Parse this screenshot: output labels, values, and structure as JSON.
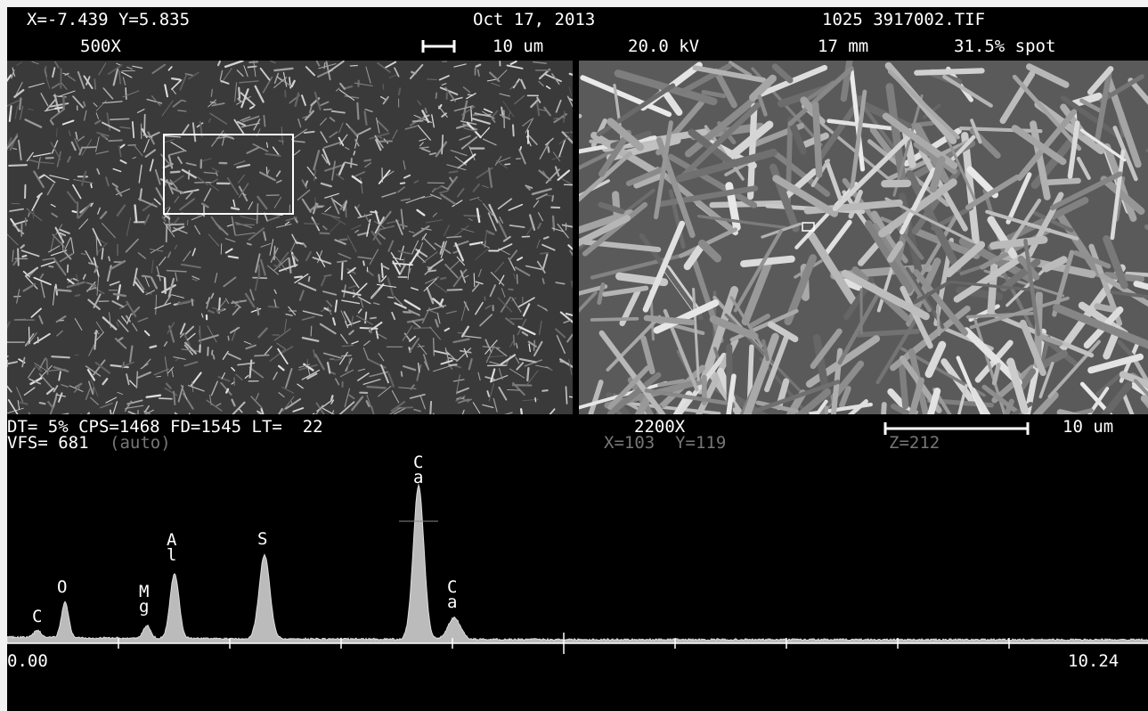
{
  "header": {
    "coords": "X=-7.439 Y=5.835",
    "date": "Oct 17, 2013",
    "file": "1025 3917002.TIF",
    "mag": "500X",
    "scale": "10 um",
    "voltage": "20.0 kV",
    "distance": "17 mm",
    "spot": "31.5% spot"
  },
  "status": {
    "counts": "DT= 5% CPS=1468 FD=1545 LT=  22",
    "mag": "2200X",
    "scale": "10 um",
    "vfs": "VFS= 681",
    "auto": "(auto)",
    "xy": "X=103  Y=119",
    "z": "Z=212"
  },
  "spectrum": {
    "peaks": [
      "C",
      "O",
      "Mg",
      "Al",
      "S",
      "Ca",
      "Ca"
    ],
    "axis_start": "0.00",
    "axis_end": "10.24"
  }
}
